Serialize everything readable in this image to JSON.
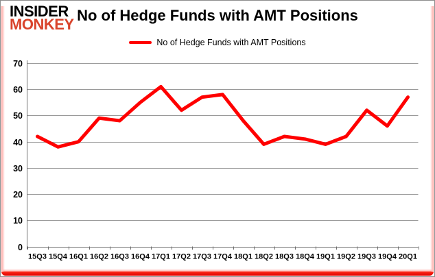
{
  "logo": {
    "line1": "INSIDER",
    "line2": "MONKEY"
  },
  "header": {
    "title": "No of Hedge Funds with AMT Positions"
  },
  "legend": {
    "label": "No of Hedge Funds with AMT Positions",
    "position": "top-center"
  },
  "colors": {
    "series_line": "#ff0000",
    "gridline": "#9a9a9a",
    "axis": "#6f6f6f",
    "tick_label": "#000000",
    "logo_black": "#000000",
    "logo_red": "#d9442c",
    "frame_red": "#e90000",
    "background": "#ffffff"
  },
  "chart_data": {
    "type": "line",
    "title": "No of Hedge Funds with AMT Positions",
    "series_name": "No of Hedge Funds with AMT Positions",
    "categories": [
      "15Q3",
      "15Q4",
      "16Q1",
      "16Q2",
      "16Q3",
      "16Q4",
      "17Q1",
      "17Q2",
      "17Q3",
      "17Q4",
      "18Q1",
      "18Q2",
      "18Q3",
      "18Q4",
      "19Q1",
      "19Q2",
      "19Q3",
      "19Q4",
      "20Q1"
    ],
    "values": [
      42,
      38,
      40,
      49,
      48,
      55,
      61,
      52,
      57,
      58,
      48,
      39,
      42,
      41,
      39,
      42,
      52,
      46,
      57
    ],
    "xlabel": "",
    "ylabel": "",
    "ylim": [
      0,
      70
    ],
    "ytick_interval": 10,
    "yticks": [
      0,
      10,
      20,
      30,
      40,
      50,
      60,
      70
    ],
    "grid": true,
    "legend_position": "top"
  }
}
